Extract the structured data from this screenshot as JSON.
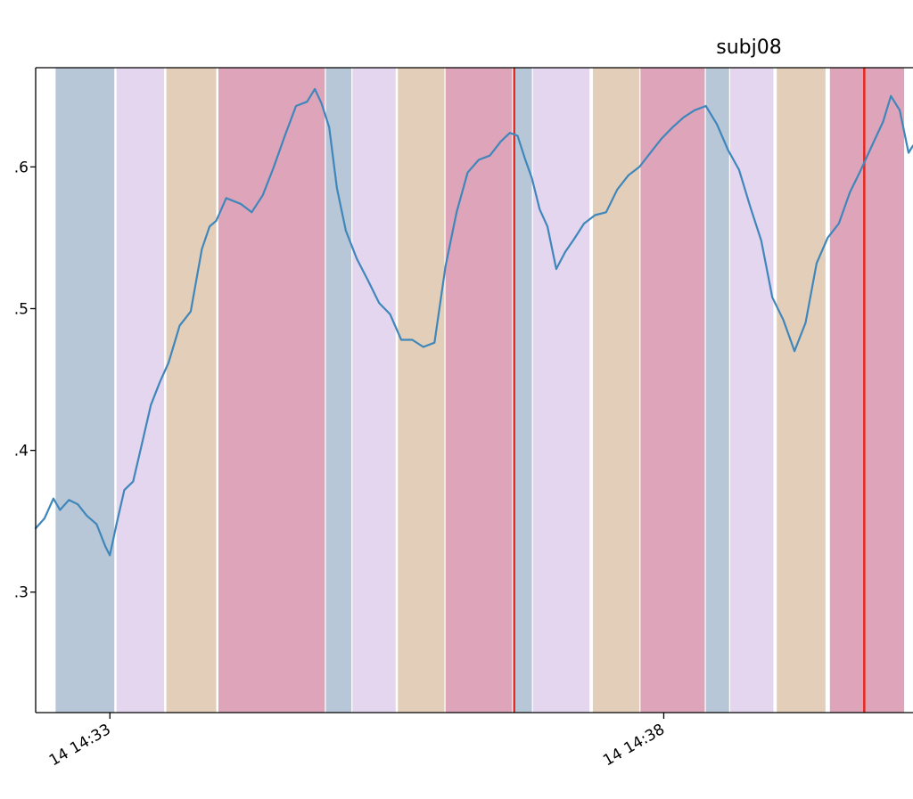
{
  "chart_data": {
    "type": "line",
    "title": "subj08",
    "xlabel": "",
    "ylabel": "",
    "xlim_minutes": [
      0,
      7.92
    ],
    "ylim": [
      0.215,
      0.67
    ],
    "grid": false,
    "x_ticks": [
      {
        "label": "14 14:33",
        "minute": 0.67
      },
      {
        "label": "14 14:38",
        "minute": 5.67
      }
    ],
    "y_ticks": [
      {
        "label": ".3",
        "value": 0.3
      },
      {
        "label": ".4",
        "value": 0.4
      },
      {
        "label": ".5",
        "value": 0.5
      },
      {
        "label": ".6",
        "value": 0.6
      }
    ],
    "colors": {
      "line": "#3f86bb",
      "event_line": "#e8281c",
      "band_slate": "#7090b0",
      "band_lavender": "#c9aee0",
      "band_tan": "#c8a074",
      "band_rose": "#be4c76"
    },
    "bands": [
      {
        "start": 0.18,
        "end": 0.71,
        "kind": "band_slate"
      },
      {
        "start": 0.73,
        "end": 1.16,
        "kind": "band_lavender"
      },
      {
        "start": 1.18,
        "end": 1.63,
        "kind": "band_tan"
      },
      {
        "start": 1.65,
        "end": 2.61,
        "kind": "band_rose"
      },
      {
        "start": 2.62,
        "end": 2.85,
        "kind": "band_slate"
      },
      {
        "start": 2.86,
        "end": 3.25,
        "kind": "band_lavender"
      },
      {
        "start": 3.27,
        "end": 3.69,
        "kind": "band_tan"
      },
      {
        "start": 3.7,
        "end": 4.3,
        "kind": "band_rose"
      },
      {
        "start": 4.32,
        "end": 4.48,
        "kind": "band_slate"
      },
      {
        "start": 4.49,
        "end": 5.0,
        "kind": "band_lavender"
      },
      {
        "start": 5.03,
        "end": 5.45,
        "kind": "band_tan"
      },
      {
        "start": 5.46,
        "end": 6.04,
        "kind": "band_rose"
      },
      {
        "start": 6.05,
        "end": 6.26,
        "kind": "band_slate"
      },
      {
        "start": 6.27,
        "end": 6.66,
        "kind": "band_lavender"
      },
      {
        "start": 6.69,
        "end": 7.13,
        "kind": "band_tan"
      },
      {
        "start": 7.17,
        "end": 7.84,
        "kind": "band_rose"
      }
    ],
    "event_lines": [
      4.32,
      7.48
    ],
    "series": [
      {
        "x": [
          0.0,
          0.08,
          0.16,
          0.22,
          0.3,
          0.38,
          0.46,
          0.55,
          0.63,
          0.67,
          0.73,
          0.8,
          0.88,
          0.96,
          1.04,
          1.12,
          1.2,
          1.3,
          1.4,
          1.5,
          1.57,
          1.63,
          1.72,
          1.85,
          1.95,
          2.05,
          2.15,
          2.25,
          2.35,
          2.45,
          2.52,
          2.58,
          2.65,
          2.72,
          2.8,
          2.9,
          3.0,
          3.1,
          3.2,
          3.3,
          3.4,
          3.5,
          3.6,
          3.7,
          3.8,
          3.9,
          4.0,
          4.1,
          4.2,
          4.28,
          4.35,
          4.42,
          4.48,
          4.55,
          4.62,
          4.7,
          4.78,
          4.86,
          4.95,
          5.05,
          5.15,
          5.25,
          5.35,
          5.45,
          5.55,
          5.65,
          5.75,
          5.85,
          5.95,
          6.05,
          6.15,
          6.25,
          6.35,
          6.45,
          6.55,
          6.65,
          6.75,
          6.85,
          6.95,
          7.05,
          7.15,
          7.25,
          7.35,
          7.45,
          7.55,
          7.65,
          7.72,
          7.8,
          7.88,
          7.92
        ],
        "y": [
          0.345,
          0.352,
          0.366,
          0.358,
          0.365,
          0.362,
          0.354,
          0.348,
          0.332,
          0.326,
          0.348,
          0.372,
          0.378,
          0.405,
          0.432,
          0.448,
          0.462,
          0.488,
          0.498,
          0.542,
          0.558,
          0.562,
          0.578,
          0.574,
          0.568,
          0.58,
          0.6,
          0.622,
          0.643,
          0.646,
          0.655,
          0.645,
          0.628,
          0.585,
          0.555,
          0.535,
          0.52,
          0.504,
          0.496,
          0.478,
          0.478,
          0.473,
          0.476,
          0.53,
          0.568,
          0.596,
          0.605,
          0.608,
          0.618,
          0.624,
          0.622,
          0.605,
          0.592,
          0.57,
          0.558,
          0.528,
          0.54,
          0.549,
          0.56,
          0.566,
          0.568,
          0.584,
          0.594,
          0.6,
          0.61,
          0.62,
          0.628,
          0.635,
          0.64,
          0.643,
          0.63,
          0.612,
          0.598,
          0.572,
          0.548,
          0.508,
          0.492,
          0.47,
          0.49,
          0.532,
          0.55,
          0.56,
          0.582,
          0.598,
          0.615,
          0.632,
          0.65,
          0.64,
          0.61,
          0.615
        ]
      }
    ]
  }
}
